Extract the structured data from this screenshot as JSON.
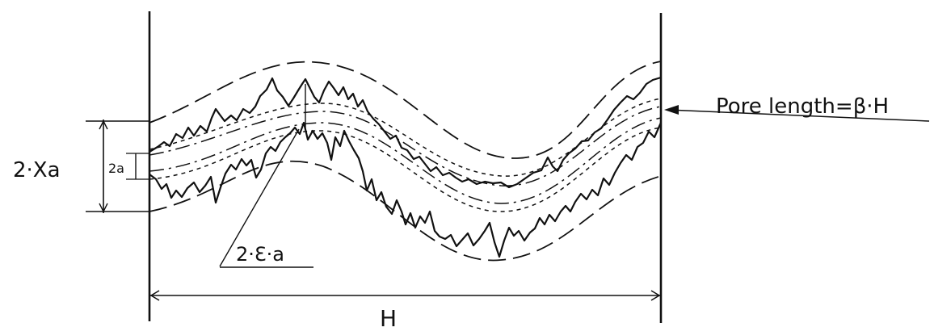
{
  "labels": {
    "two_xa": "2·Xa",
    "two_a": "2a",
    "two_eps_a": "2·Ɛ·a",
    "pore_length": "Pore length=β·H",
    "h": "H"
  },
  "colors": {
    "ink": "#111111",
    "background": "#ffffff"
  }
}
